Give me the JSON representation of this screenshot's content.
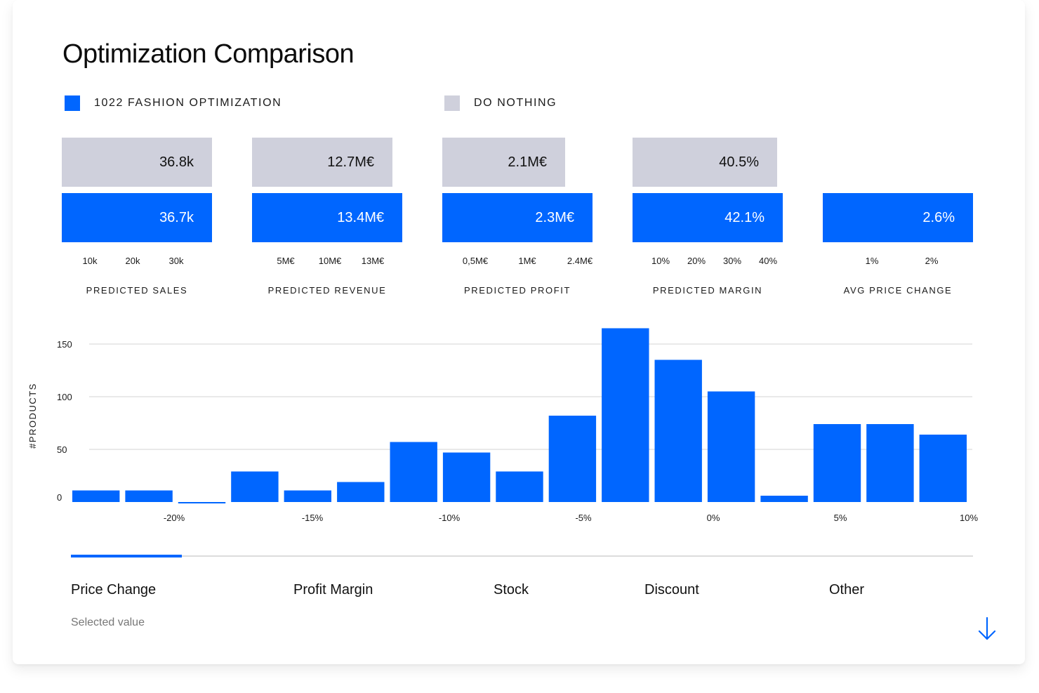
{
  "title": "Optimization Comparison",
  "legend": [
    {
      "label": "1022 FASHION OPTIMIZATION",
      "color": "#0066ff"
    },
    {
      "label": "DO NOTHING",
      "color": "#cfd0dc"
    }
  ],
  "metrics": [
    {
      "label": "PREDICTED SALES",
      "do_nothing": "36.8k",
      "optimization": "36.7k",
      "ticks": [
        "10k",
        "20k",
        "30k"
      ]
    },
    {
      "label": "PREDICTED REVENUE",
      "do_nothing": "12.7M€",
      "optimization": "13.4M€",
      "ticks": [
        "5M€",
        "10M€",
        "13M€"
      ]
    },
    {
      "label": "PREDICTED PROFIT",
      "do_nothing": "2.1M€",
      "optimization": "2.3M€",
      "ticks": [
        "0,5M€",
        "1M€",
        "2.4M€"
      ]
    },
    {
      "label": "PREDICTED MARGIN",
      "do_nothing": "40.5%",
      "optimization": "42.1%",
      "ticks": [
        "10%",
        "20%",
        "30%",
        "40%"
      ]
    },
    {
      "label": "AVG PRICE CHANGE",
      "do_nothing": null,
      "optimization": "2.6%",
      "ticks": [
        "1%",
        "2%"
      ]
    }
  ],
  "chart_data": {
    "type": "bar",
    "ylabel": "#PRODUCTS",
    "xlabel": "",
    "ylim": [
      0,
      150
    ],
    "yticks": [
      0,
      50,
      100,
      150
    ],
    "xticks": [
      "-20%",
      "-15%",
      "-10%",
      "-5%",
      "0%",
      "5%",
      "10%"
    ],
    "values": [
      11,
      11,
      -1,
      29,
      11,
      19,
      57,
      47,
      29,
      82,
      165,
      135,
      105,
      6,
      74,
      74,
      64
    ],
    "color": "#0066ff",
    "grid": true
  },
  "tabs": [
    "Price Change",
    "Profit Margin",
    "Stock",
    "Discount",
    "Other"
  ],
  "active_tab": "Price Change",
  "selected_value_label": "Selected value",
  "colors": {
    "accent": "#0066ff",
    "do_nothing": "#cfd0dc",
    "grid": "#dcdcdc"
  },
  "icons": {
    "scroll": "arrow-down-icon"
  }
}
